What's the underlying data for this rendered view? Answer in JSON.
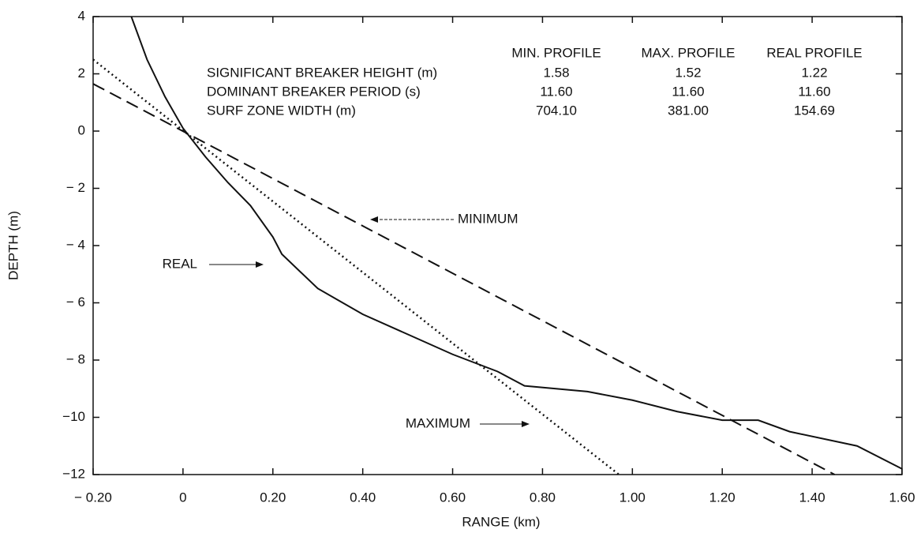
{
  "chart_data": {
    "type": "line",
    "x_label": "RANGE (km)",
    "y_label": "DEPTH (m)",
    "xlim": [
      -0.2,
      1.6
    ],
    "ylim": [
      -12,
      4
    ],
    "xticks": [
      {
        "value": -0.2,
        "label": "− 0.20"
      },
      0,
      {
        "value": 0.2,
        "label": "0.20"
      },
      {
        "value": 0.4,
        "label": "0.40"
      },
      {
        "value": 0.6,
        "label": "0.60"
      },
      {
        "value": 0.8,
        "label": "0.80"
      },
      {
        "value": 1.0,
        "label": "1.00"
      },
      {
        "value": 1.2,
        "label": "1.20"
      },
      {
        "value": 1.4,
        "label": "1.40"
      },
      {
        "value": 1.6,
        "label": "1.60"
      }
    ],
    "yticks": [
      {
        "value": -12,
        "label": "−12"
      },
      {
        "value": -10,
        "label": "−10"
      },
      {
        "value": -8,
        "label": "− 8"
      },
      {
        "value": -6,
        "label": "− 6"
      },
      {
        "value": -4,
        "label": "− 4"
      },
      {
        "value": -2,
        "label": "− 2"
      },
      0,
      2,
      4
    ],
    "series": [
      {
        "name": "MINIMUM",
        "color": "#111111",
        "style": "dashed",
        "x": [
          -0.2,
          1.45
        ],
        "y": [
          1.65,
          -12
        ]
      },
      {
        "name": "REAL",
        "color": "#111111",
        "style": "solid",
        "x": [
          -0.115,
          -0.08,
          -0.04,
          0,
          0.05,
          0.1,
          0.15,
          0.2,
          0.22,
          0.3,
          0.4,
          0.5,
          0.6,
          0.7,
          0.76,
          0.9,
          1.0,
          1.1,
          1.2,
          1.28,
          1.35,
          1.5,
          1.6
        ],
        "y": [
          4,
          2.5,
          1.2,
          0.1,
          -0.9,
          -1.8,
          -2.6,
          -3.7,
          -4.3,
          -5.5,
          -6.4,
          -7.1,
          -7.8,
          -8.4,
          -8.9,
          -9.1,
          -9.4,
          -9.8,
          -10.1,
          -10.1,
          -10.5,
          -11,
          -11.8
        ]
      },
      {
        "name": "MAXIMUM",
        "color": "#111111",
        "style": "dotted",
        "x": [
          -0.2,
          0.97
        ],
        "y": [
          2.5,
          -12
        ]
      }
    ],
    "table": {
      "columns": [
        "MIN. PROFILE",
        "MAX. PROFILE",
        "REAL PROFILE"
      ],
      "rows": [
        {
          "label": "SIGNIFICANT BREAKER HEIGHT (m)",
          "values": [
            "1.58",
            "1.52",
            "1.22"
          ]
        },
        {
          "label": "DOMINANT BREAKER PERIOD (s)",
          "values": [
            "11.60",
            "11.60",
            "11.60"
          ]
        },
        {
          "label": "SURF ZONE WIDTH (m)",
          "values": [
            "704.10",
            "381.00",
            "154.69"
          ]
        }
      ]
    }
  }
}
